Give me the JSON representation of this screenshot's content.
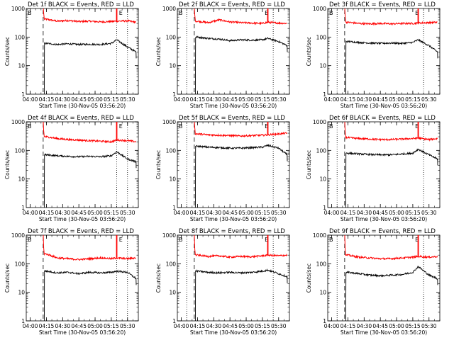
{
  "shared": {
    "xlabel": "Start Time (30-Nov-05 03:56:20)",
    "ylabel": "Counts/sec",
    "x_tick_labels": [
      "04:00",
      "04:15",
      "04:30",
      "04:45",
      "05:00",
      "05:15",
      "05:30"
    ],
    "y_tick_labels": [
      "1",
      "10",
      "100",
      "1000"
    ],
    "marker_b": "B",
    "marker_e": "E",
    "colors": {
      "events": "#000000",
      "lld": "#ff0000",
      "axes": "#000000"
    }
  },
  "chart_data": [
    {
      "type": "line",
      "title": "Det 1f BLACK = Events, RED = LLD",
      "x_unit": "time",
      "ylog": true,
      "ylim": [
        1,
        1000
      ],
      "xlim": [
        "03:56:20",
        "05:40"
      ],
      "vlines": [
        {
          "x": "04:12",
          "style": "dashed"
        },
        {
          "x": "05:20",
          "style": "dotted"
        },
        {
          "x": "05:30",
          "style": "dotted"
        }
      ],
      "spikes": [
        "05:20"
      ],
      "series": [
        {
          "name": "RED = LLD",
          "x": [
            "04:12",
            "04:15",
            "04:25",
            "04:35",
            "04:45",
            "04:55",
            "05:05",
            "05:15",
            "05:20",
            "05:30",
            "05:38"
          ],
          "values": [
            2000,
            420,
            360,
            380,
            350,
            360,
            340,
            350,
            360,
            370,
            330
          ]
        },
        {
          "name": "BLACK = Events",
          "x": [
            "04:12",
            "04:15",
            "04:25",
            "04:35",
            "04:45",
            "04:55",
            "05:05",
            "05:15",
            "05:20",
            "05:30",
            "05:38"
          ],
          "values": [
            0,
            60,
            55,
            58,
            55,
            56,
            55,
            60,
            80,
            45,
            30
          ]
        }
      ]
    },
    {
      "type": "line",
      "title": "Det 2f BLACK = Events, RED = LLD",
      "x_unit": "time",
      "ylog": true,
      "ylim": [
        1,
        1000
      ],
      "xlim": [
        "03:56:20",
        "05:40"
      ],
      "vlines": [
        {
          "x": "04:05",
          "style": "dotted"
        },
        {
          "x": "04:12",
          "style": "dashed"
        },
        {
          "x": "05:25",
          "style": "dotted"
        }
      ],
      "spikes": [
        "05:20"
      ],
      "series": [
        {
          "name": "RED = LLD",
          "x": [
            "04:12",
            "04:15",
            "04:25",
            "04:35",
            "04:45",
            "04:55",
            "05:05",
            "05:15",
            "05:20",
            "05:30",
            "05:38"
          ],
          "values": [
            2000,
            360,
            320,
            400,
            340,
            320,
            310,
            300,
            330,
            310,
            300
          ]
        },
        {
          "name": "BLACK = Events",
          "x": [
            "04:12",
            "04:15",
            "04:25",
            "04:35",
            "04:45",
            "04:55",
            "05:05",
            "05:15",
            "05:20",
            "05:30",
            "05:38"
          ],
          "values": [
            0,
            100,
            90,
            85,
            75,
            80,
            78,
            80,
            90,
            70,
            50
          ]
        }
      ]
    },
    {
      "type": "line",
      "title": "Det 3f BLACK = Events, RED = LLD",
      "x_unit": "time",
      "ylog": true,
      "ylim": [
        1,
        1000
      ],
      "xlim": [
        "03:56:20",
        "05:40"
      ],
      "vlines": [
        {
          "x": "04:05",
          "style": "dotted"
        },
        {
          "x": "04:12",
          "style": "dashed"
        },
        {
          "x": "05:25",
          "style": "dotted"
        }
      ],
      "spikes": [
        "05:20"
      ],
      "series": [
        {
          "name": "RED = LLD",
          "x": [
            "04:12",
            "04:15",
            "04:25",
            "04:35",
            "04:45",
            "04:55",
            "05:05",
            "05:15",
            "05:20",
            "05:30",
            "05:38"
          ],
          "values": [
            2000,
            330,
            300,
            290,
            300,
            290,
            300,
            300,
            310,
            320,
            330
          ]
        },
        {
          "name": "BLACK = Events",
          "x": [
            "04:12",
            "04:15",
            "04:25",
            "04:35",
            "04:45",
            "04:55",
            "05:05",
            "05:15",
            "05:20",
            "05:30",
            "05:38"
          ],
          "values": [
            0,
            70,
            65,
            62,
            60,
            62,
            60,
            65,
            80,
            50,
            30
          ]
        }
      ]
    },
    {
      "type": "line",
      "title": "Det 4f BLACK = Events, RED = LLD",
      "x_unit": "time",
      "ylog": true,
      "ylim": [
        1,
        1000
      ],
      "xlim": [
        "03:56:20",
        "05:40"
      ],
      "vlines": [
        {
          "x": "04:12",
          "style": "dashed"
        },
        {
          "x": "05:20",
          "style": "dotted"
        },
        {
          "x": "05:30",
          "style": "dotted"
        }
      ],
      "spikes": [
        "05:20"
      ],
      "series": [
        {
          "name": "RED = LLD",
          "x": [
            "04:12",
            "04:15",
            "04:25",
            "04:35",
            "04:45",
            "04:55",
            "05:05",
            "05:15",
            "05:20",
            "05:30",
            "05:38"
          ],
          "values": [
            2000,
            300,
            260,
            240,
            230,
            220,
            210,
            200,
            230,
            220,
            200
          ]
        },
        {
          "name": "BLACK = Events",
          "x": [
            "04:12",
            "04:15",
            "04:25",
            "04:35",
            "04:45",
            "04:55",
            "05:05",
            "05:15",
            "05:20",
            "05:30",
            "05:38"
          ],
          "values": [
            0,
            70,
            65,
            62,
            60,
            62,
            60,
            65,
            90,
            50,
            40
          ]
        }
      ]
    },
    {
      "type": "line",
      "title": "Det 5f BLACK = Events, RED = LLD",
      "x_unit": "time",
      "ylog": true,
      "ylim": [
        1,
        1000
      ],
      "xlim": [
        "03:56:20",
        "05:40"
      ],
      "vlines": [
        {
          "x": "04:05",
          "style": "dotted"
        },
        {
          "x": "04:12",
          "style": "dashed"
        },
        {
          "x": "05:25",
          "style": "dotted"
        }
      ],
      "spikes": [
        "05:20"
      ],
      "series": [
        {
          "name": "RED = LLD",
          "x": [
            "04:12",
            "04:15",
            "04:25",
            "04:35",
            "04:45",
            "04:55",
            "05:05",
            "05:15",
            "05:20",
            "05:30",
            "05:38"
          ],
          "values": [
            2000,
            380,
            350,
            340,
            330,
            320,
            330,
            340,
            350,
            380,
            400
          ]
        },
        {
          "name": "BLACK = Events",
          "x": [
            "04:12",
            "04:15",
            "04:25",
            "04:35",
            "04:45",
            "04:55",
            "05:05",
            "05:15",
            "05:20",
            "05:30",
            "05:38"
          ],
          "values": [
            0,
            140,
            130,
            125,
            120,
            120,
            125,
            130,
            150,
            120,
            70
          ]
        }
      ]
    },
    {
      "type": "line",
      "title": "Det 6f BLACK = Events, RED = LLD",
      "x_unit": "time",
      "ylog": true,
      "ylim": [
        1,
        1000
      ],
      "xlim": [
        "03:56:20",
        "05:40"
      ],
      "vlines": [
        {
          "x": "04:05",
          "style": "dotted"
        },
        {
          "x": "04:12",
          "style": "dashed"
        },
        {
          "x": "05:25",
          "style": "dotted"
        }
      ],
      "spikes": [
        "05:20"
      ],
      "series": [
        {
          "name": "RED = LLD",
          "x": [
            "04:12",
            "04:15",
            "04:25",
            "04:35",
            "04:45",
            "04:55",
            "05:05",
            "05:15",
            "05:20",
            "05:30",
            "05:38"
          ],
          "values": [
            2000,
            280,
            260,
            250,
            240,
            240,
            250,
            260,
            270,
            240,
            260
          ]
        },
        {
          "name": "BLACK = Events",
          "x": [
            "04:12",
            "04:15",
            "04:25",
            "04:35",
            "04:45",
            "04:55",
            "05:05",
            "05:15",
            "05:20",
            "05:30",
            "05:38"
          ],
          "values": [
            0,
            80,
            75,
            72,
            70,
            70,
            75,
            80,
            110,
            70,
            50
          ]
        }
      ]
    },
    {
      "type": "line",
      "title": "Det 7f BLACK = Events, RED = LLD",
      "x_unit": "time",
      "ylog": true,
      "ylim": [
        1,
        1000
      ],
      "xlim": [
        "03:56:20",
        "05:40"
      ],
      "vlines": [
        {
          "x": "04:12",
          "style": "dashed"
        },
        {
          "x": "05:20",
          "style": "dotted"
        },
        {
          "x": "05:30",
          "style": "dotted"
        }
      ],
      "spikes": [
        "05:20"
      ],
      "series": [
        {
          "name": "RED = LLD",
          "x": [
            "04:12",
            "04:15",
            "04:25",
            "04:35",
            "04:45",
            "04:55",
            "05:05",
            "05:15",
            "05:20",
            "05:30",
            "05:38"
          ],
          "values": [
            2000,
            220,
            160,
            150,
            140,
            150,
            160,
            150,
            160,
            150,
            160
          ]
        },
        {
          "name": "BLACK = Events",
          "x": [
            "04:12",
            "04:15",
            "04:25",
            "04:35",
            "04:45",
            "04:55",
            "05:05",
            "05:15",
            "05:20",
            "05:30",
            "05:38"
          ],
          "values": [
            0,
            55,
            48,
            50,
            45,
            50,
            48,
            50,
            55,
            50,
            30
          ]
        }
      ]
    },
    {
      "type": "line",
      "title": "Det 8f BLACK = Events, RED = LLD",
      "x_unit": "time",
      "ylog": true,
      "ylim": [
        1,
        1000
      ],
      "xlim": [
        "03:56:20",
        "05:40"
      ],
      "vlines": [
        {
          "x": "04:05",
          "style": "dotted"
        },
        {
          "x": "04:12",
          "style": "dashed"
        },
        {
          "x": "05:25",
          "style": "dotted"
        }
      ],
      "spikes": [
        "05:20"
      ],
      "series": [
        {
          "name": "RED = LLD",
          "x": [
            "04:12",
            "04:15",
            "04:25",
            "04:35",
            "04:45",
            "04:55",
            "05:05",
            "05:15",
            "05:20",
            "05:30",
            "05:38"
          ],
          "values": [
            2000,
            200,
            180,
            190,
            170,
            180,
            175,
            190,
            200,
            190,
            200
          ]
        },
        {
          "name": "BLACK = Events",
          "x": [
            "04:12",
            "04:15",
            "04:25",
            "04:35",
            "04:45",
            "04:55",
            "05:05",
            "05:15",
            "05:20",
            "05:30",
            "05:38"
          ],
          "values": [
            0,
            55,
            50,
            48,
            50,
            48,
            50,
            55,
            60,
            45,
            35
          ]
        }
      ]
    },
    {
      "type": "line",
      "title": "Det 9f BLACK = Events, RED = LLD",
      "x_unit": "time",
      "ylog": true,
      "ylim": [
        1,
        1000
      ],
      "xlim": [
        "03:56:20",
        "05:40"
      ],
      "vlines": [
        {
          "x": "04:05",
          "style": "dotted"
        },
        {
          "x": "04:12",
          "style": "dashed"
        },
        {
          "x": "05:25",
          "style": "dotted"
        }
      ],
      "spikes": [
        "05:20"
      ],
      "series": [
        {
          "name": "RED = LLD",
          "x": [
            "04:12",
            "04:15",
            "04:25",
            "04:35",
            "04:45",
            "04:55",
            "05:05",
            "05:15",
            "05:20",
            "05:30",
            "05:38"
          ],
          "values": [
            2000,
            200,
            170,
            160,
            150,
            150,
            160,
            170,
            180,
            170,
            180
          ]
        },
        {
          "name": "BLACK = Events",
          "x": [
            "04:12",
            "04:15",
            "04:25",
            "04:35",
            "04:45",
            "04:55",
            "05:05",
            "05:15",
            "05:20",
            "05:30",
            "05:38"
          ],
          "values": [
            0,
            50,
            45,
            40,
            38,
            40,
            42,
            50,
            80,
            40,
            30
          ]
        }
      ]
    }
  ]
}
